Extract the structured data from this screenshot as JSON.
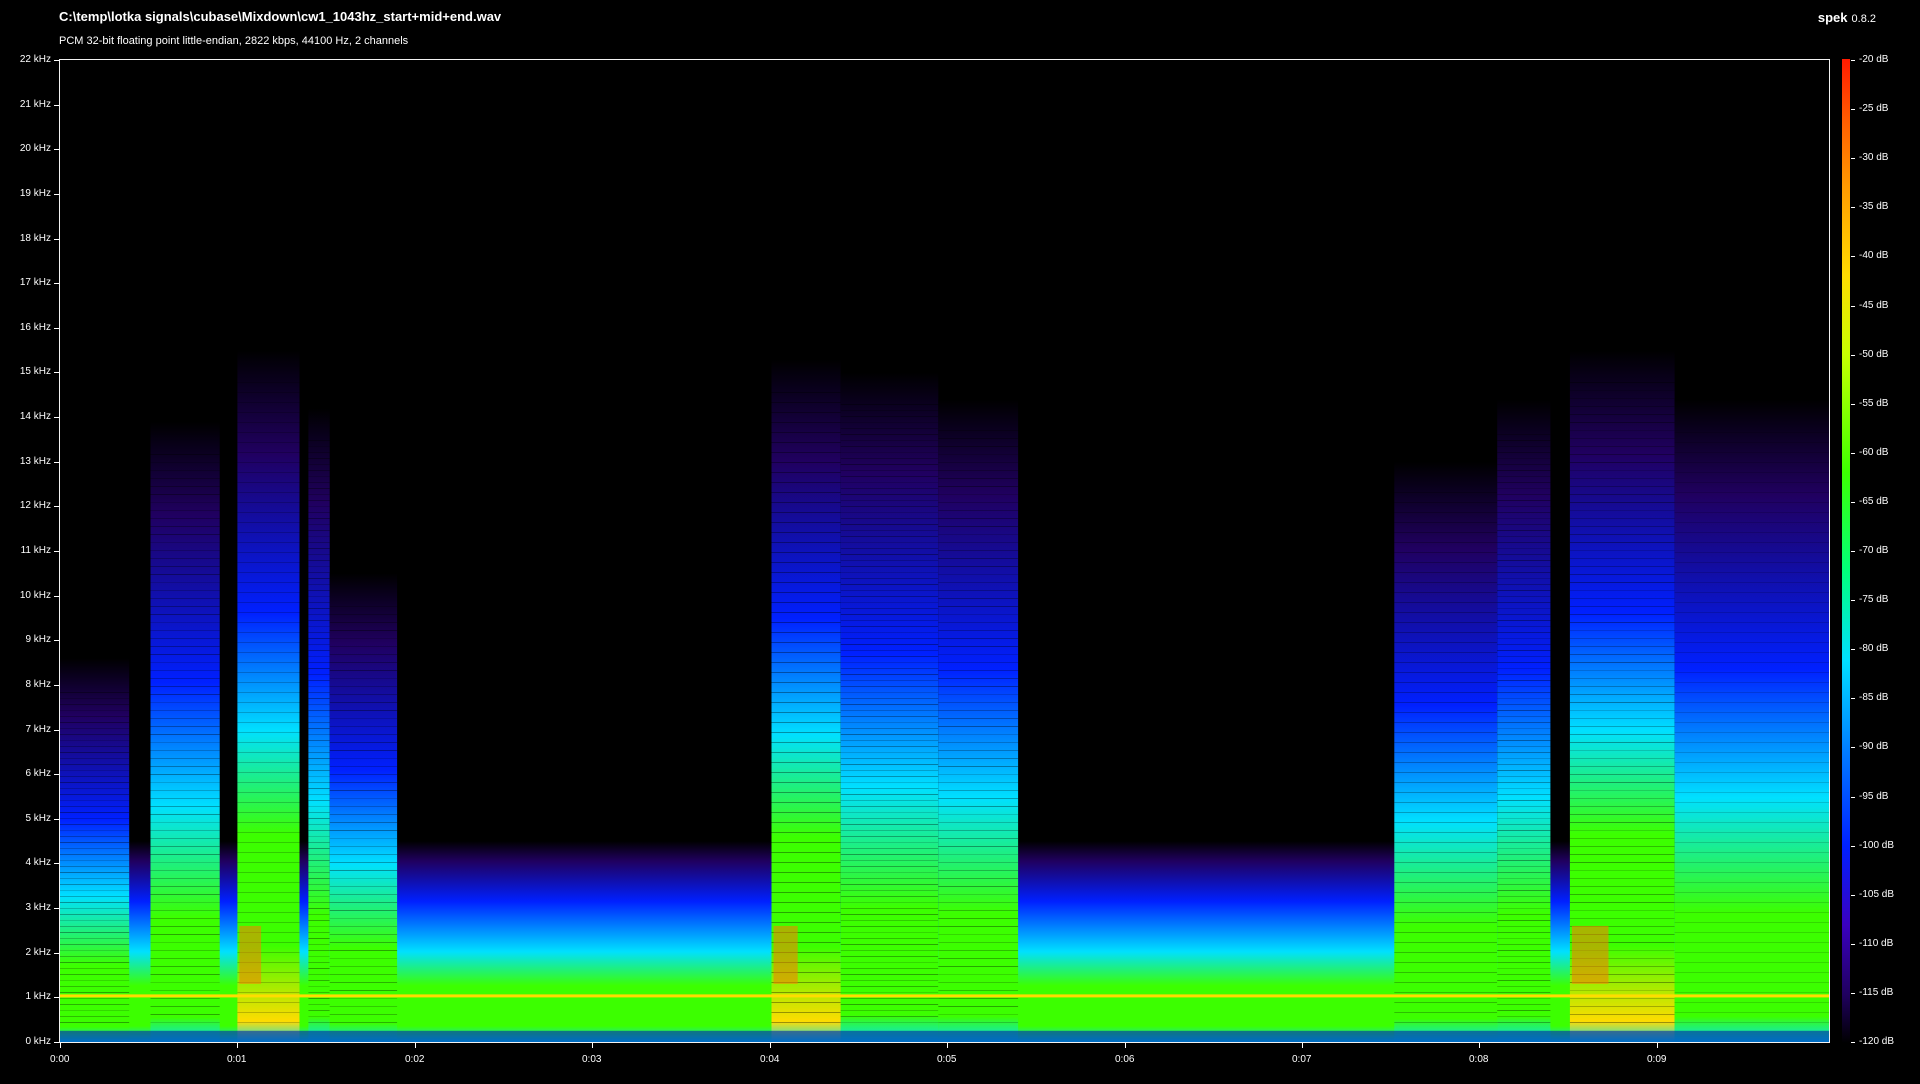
{
  "window": {
    "file_path": "C:\\temp\\lotka signals\\cubase\\Mixdown\\cw1_1043hz_start+mid+end.wav",
    "stream_info": "PCM 32-bit floating point little-endian, 2822 kbps, 44100 Hz, 2 channels",
    "app_name": "spek",
    "app_version": "0.8.2"
  },
  "frequency_axis": {
    "labels": [
      "22 kHz",
      "21 kHz",
      "20 kHz",
      "19 kHz",
      "18 kHz",
      "17 kHz",
      "16 kHz",
      "15 kHz",
      "14 kHz",
      "13 kHz",
      "12 kHz",
      "11 kHz",
      "10 kHz",
      "9 kHz",
      "8 kHz",
      "7 kHz",
      "6 kHz",
      "5 kHz",
      "4 kHz",
      "3 kHz",
      "2 kHz",
      "1 kHz",
      "0 kHz"
    ],
    "max_khz": 22
  },
  "time_axis": {
    "labels": [
      "0:00",
      "0:01",
      "0:02",
      "0:03",
      "0:04",
      "0:05",
      "0:06",
      "0:07",
      "0:08",
      "0:09"
    ],
    "duration_s": 9.97
  },
  "db_scale": {
    "labels": [
      "-20 dB",
      "-25 dB",
      "-30 dB",
      "-35 dB",
      "-40 dB",
      "-45 dB",
      "-50 dB",
      "-55 dB",
      "-60 dB",
      "-65 dB",
      "-70 dB",
      "-75 dB",
      "-80 dB",
      "-85 dB",
      "-90 dB",
      "-95 dB",
      "-100 dB",
      "-105 dB",
      "-110 dB",
      "-115 dB",
      "-120 dB"
    ],
    "max_db": -20,
    "min_db": -120
  },
  "spectrogram": {
    "carrier_khz": 1.043,
    "bursts": [
      {
        "start_s": 0.0,
        "end_s": 0.39,
        "top_khz": 8.6,
        "level": 0.55
      },
      {
        "start_s": 0.51,
        "end_s": 0.9,
        "top_khz": 13.9,
        "level": 0.75
      },
      {
        "start_s": 1.0,
        "end_s": 1.35,
        "top_khz": 15.5,
        "level": 0.9
      },
      {
        "start_s": 1.4,
        "end_s": 1.52,
        "top_khz": 14.2,
        "level": 0.6
      },
      {
        "start_s": 1.52,
        "end_s": 1.9,
        "top_khz": 10.5,
        "level": 0.55
      },
      {
        "start_s": 4.01,
        "end_s": 4.4,
        "top_khz": 15.3,
        "level": 0.9
      },
      {
        "start_s": 4.4,
        "end_s": 4.95,
        "top_khz": 15.0,
        "level": 0.75
      },
      {
        "start_s": 4.95,
        "end_s": 5.4,
        "top_khz": 14.4,
        "level": 0.75
      },
      {
        "start_s": 7.52,
        "end_s": 8.1,
        "top_khz": 13.0,
        "level": 0.75
      },
      {
        "start_s": 8.1,
        "end_s": 8.4,
        "top_khz": 14.4,
        "level": 0.75
      },
      {
        "start_s": 8.51,
        "end_s": 9.1,
        "top_khz": 15.5,
        "level": 0.9
      },
      {
        "start_s": 9.1,
        "end_s": 9.97,
        "top_khz": 14.4,
        "level": 0.7
      }
    ],
    "noise_floor_top_khz": 4.5,
    "colors": {
      "peak": "#ff1a00",
      "hot": "#ffdc00",
      "mid": "#3cff00",
      "cool": "#00e0ff",
      "low": "#0020ff",
      "floor": "#200060",
      "background": "#000000"
    }
  }
}
